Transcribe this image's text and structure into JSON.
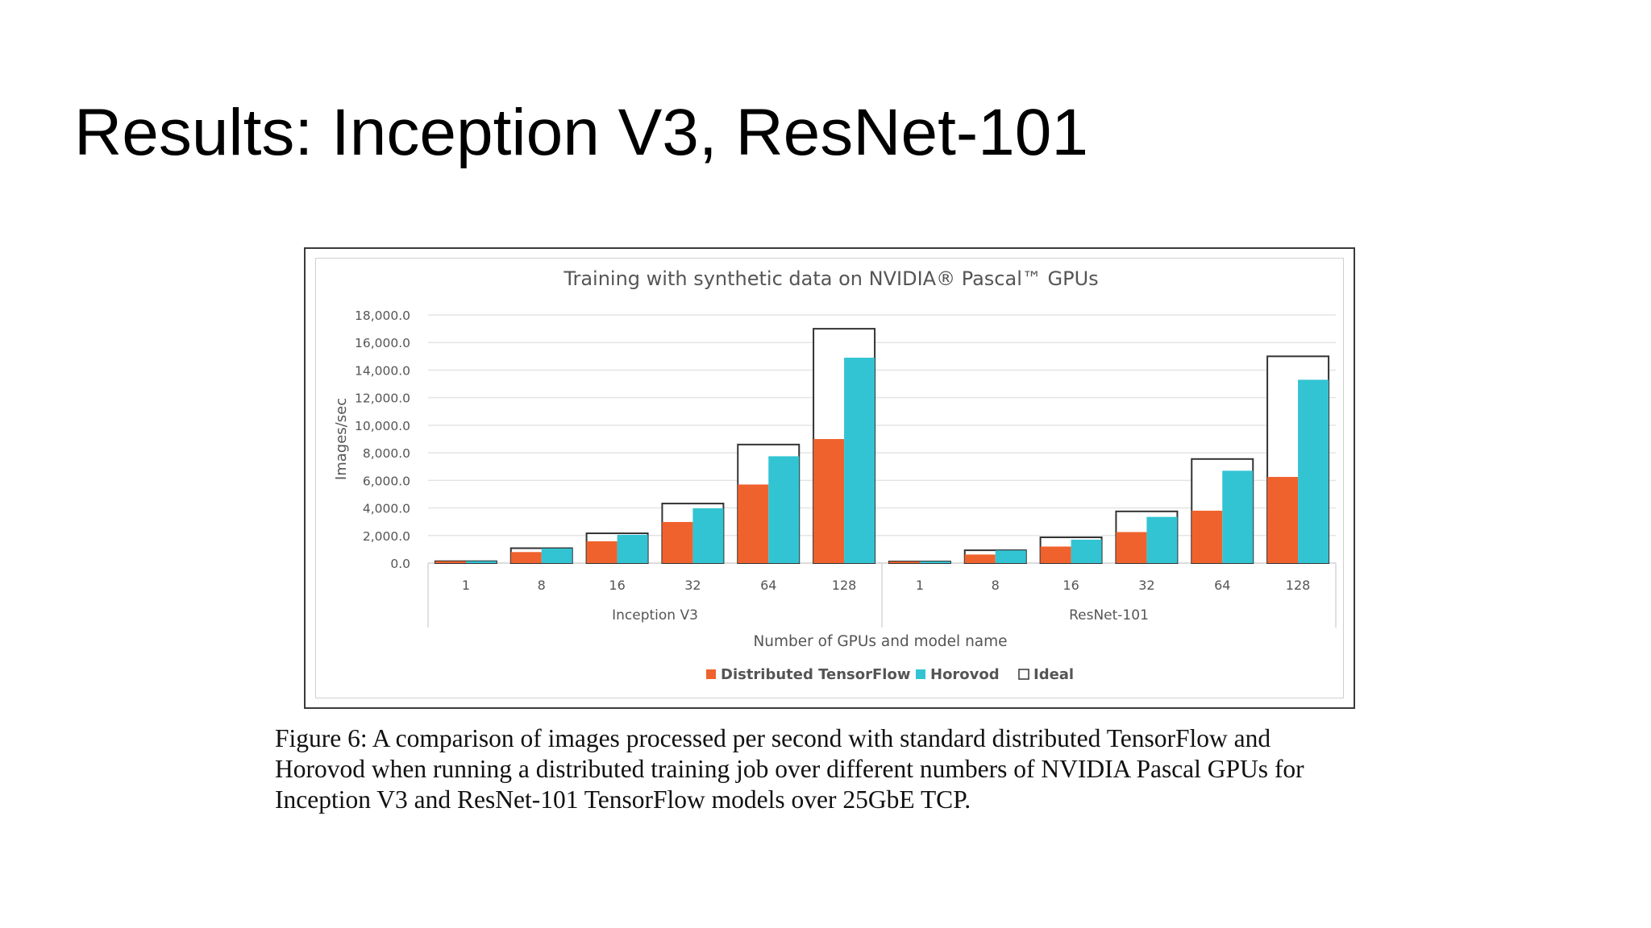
{
  "slide": {
    "title": "Results: Inception V3, ResNet-101",
    "caption_lines": [
      "Figure 6: A comparison of images processed per second with standard distributed TensorFlow and",
      "Horovod when running a distributed training job over different numbers of NVIDIA Pascal GPUs for",
      "Inception V3 and ResNet-101 TensorFlow models over 25GbE TCP."
    ]
  },
  "chart_data": {
    "type": "bar",
    "title": "Training with synthetic data on NVIDIA® Pascal™ GPUs",
    "ylabel": "Images/sec",
    "xlabel": "Number of GPUs and model name",
    "ylim": [
      0,
      18000
    ],
    "yticks": [
      "0.0",
      "2,000.0",
      "4,000.0",
      "6,000.0",
      "8,000.0",
      "10,000.0",
      "12,000.0",
      "14,000.0",
      "16,000.0",
      "18,000.0"
    ],
    "grid": true,
    "legend_position": "bottom",
    "groups": [
      {
        "name": "Inception V3",
        "categories": [
          "1",
          "8",
          "16",
          "32",
          "64",
          "128"
        ],
        "series": [
          {
            "name": "Distributed TensorFlow",
            "values": [
              130,
              800,
              1580,
              2980,
              5700,
              9000
            ]
          },
          {
            "name": "Horovod",
            "values": [
              135,
              1060,
              2050,
              3980,
              7750,
              14900
            ]
          },
          {
            "name": "Ideal",
            "values": [
              135,
              1080,
              2160,
              4320,
              8600,
              17000
            ]
          }
        ]
      },
      {
        "name": "ResNet-101",
        "categories": [
          "1",
          "8",
          "16",
          "32",
          "64",
          "128"
        ],
        "series": [
          {
            "name": "Distributed TensorFlow",
            "values": [
              110,
              620,
              1200,
              2250,
              3800,
              6250
            ]
          },
          {
            "name": "Horovod",
            "values": [
              115,
              920,
              1700,
              3350,
              6700,
              13300
            ]
          },
          {
            "name": "Ideal",
            "values": [
              115,
              930,
              1870,
              3750,
              7550,
              15000
            ]
          }
        ]
      }
    ],
    "colors": {
      "Distributed TensorFlow": "#f0622d",
      "Horovod": "#32c4d3",
      "Ideal": "#ffffff",
      "ideal_stroke": "#333333",
      "grid": "#e4e4e4",
      "text": "#555555"
    }
  }
}
